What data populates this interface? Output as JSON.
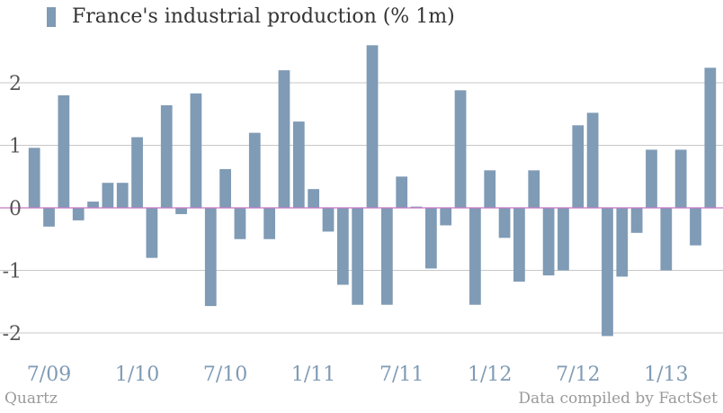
{
  "legend": {
    "label": "France's industrial production (% 1m)"
  },
  "footer": {
    "source_left": "Quartz",
    "source_right": "Data compiled by FactSet"
  },
  "colors": {
    "bar": "#7f9bb5",
    "grid": "#c8c8c8",
    "zero_line": "#c878c8",
    "ytick": "#555555",
    "xtick": "#7f9bb5",
    "footer": "#9a9a9a"
  },
  "chart_data": {
    "type": "bar",
    "title": "",
    "xlabel": "",
    "ylabel": "",
    "ylim": [
      -2.3,
      2.65
    ],
    "yticks": [
      -2,
      -1,
      0,
      1,
      2
    ],
    "ytick_labels": [
      "-2",
      "-1",
      "0",
      "1",
      "2"
    ],
    "xtick_labels": [
      "7/09",
      "1/10",
      "7/10",
      "1/11",
      "7/11",
      "1/12",
      "7/12",
      "1/13"
    ],
    "grid": true,
    "series": [
      {
        "values": [
          0.96,
          -0.3,
          1.8,
          -0.2,
          0.1,
          0.4,
          0.4,
          1.13,
          -0.8,
          1.64,
          -0.1,
          1.83,
          -1.57,
          0.62,
          -0.5,
          1.2,
          -0.5,
          2.2,
          1.38,
          0.3,
          -0.38,
          -1.23,
          -1.55,
          2.6,
          -1.55,
          0.5,
          0.02,
          -0.97,
          -0.28,
          1.88,
          -1.55,
          0.6,
          -0.48,
          -1.18,
          0.6,
          -1.08,
          -1.0,
          1.32,
          1.52,
          -2.05,
          -1.1,
          -0.4,
          0.93,
          -1.0,
          0.93,
          -0.6,
          2.24
        ]
      }
    ]
  }
}
